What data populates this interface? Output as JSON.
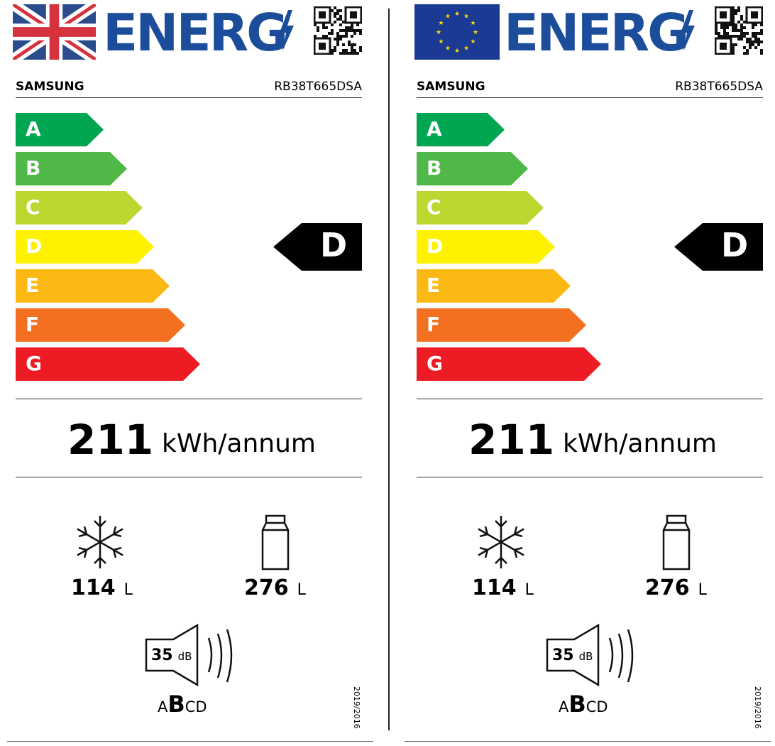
{
  "labels": [
    {
      "flag": "uk-flag",
      "title": "ENERG",
      "brand": "SAMSUNG",
      "model": "RB38T665DSA",
      "classes": [
        "A",
        "B",
        "C",
        "D",
        "E",
        "F",
        "G"
      ],
      "rating": "D",
      "energy": "211",
      "energy_unit": "kWh/annum",
      "freezer": "114",
      "fridge": "276",
      "vol_unit": "L",
      "noise": "35",
      "noise_unit": "dB",
      "noise_classes": [
        "A",
        "B",
        "CD"
      ],
      "regulation": "2019/2016"
    },
    {
      "flag": "eu-flag",
      "title": "ENERG",
      "brand": "SAMSUNG",
      "model": "RB38T665DSA",
      "classes": [
        "A",
        "B",
        "C",
        "D",
        "E",
        "F",
        "G"
      ],
      "rating": "D",
      "energy": "211",
      "energy_unit": "kWh/annum",
      "freezer": "114",
      "fridge": "276",
      "vol_unit": "L",
      "noise": "35",
      "noise_unit": "dB",
      "noise_classes": [
        "A",
        "B",
        "CD"
      ],
      "regulation": "2019/2016"
    }
  ],
  "colors": {
    "A": "#00a651",
    "B": "#50b848",
    "C": "#bed630",
    "D": "#fff200",
    "E": "#fdb913",
    "F": "#f37021",
    "G": "#ed1c24",
    "title": "#1b4d9b"
  }
}
